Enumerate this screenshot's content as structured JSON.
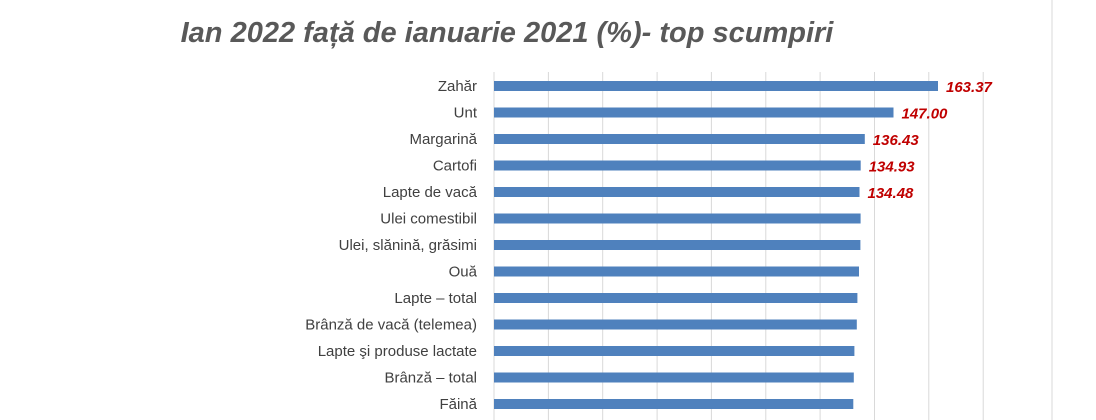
{
  "chart_data": {
    "type": "bar",
    "orientation": "horizontal",
    "title": "Ian 2022 față de ianuarie 2021 (%)- top scumpiri",
    "categories": [
      "Zahăr",
      "Unt",
      "Margarină",
      "Cartofi",
      "Lapte de vacă",
      "Ulei comestibil",
      "Ulei, slănină, grăsimi",
      "Ouă",
      "Lapte – total",
      "Brânză de vacă (telemea)",
      "Lapte şi produse lactate",
      "Brânză – total",
      "Făină"
    ],
    "values": [
      163.37,
      147.0,
      136.43,
      134.93,
      134.48,
      134.9,
      134.8,
      134.3,
      133.7,
      133.5,
      132.6,
      132.4,
      132.2
    ],
    "data_labels": [
      "163.37",
      "147.00",
      "136.43",
      "134.93",
      "134.48",
      "",
      "",
      "",
      "",
      "",
      "",
      "",
      ""
    ],
    "xlim": [
      0,
      180
    ],
    "grid": true,
    "colors": {
      "bar": "#4f81bd",
      "value_label": "#c00000",
      "title": "#595959",
      "category_label": "#404040",
      "grid": "#d9d9d9"
    }
  }
}
